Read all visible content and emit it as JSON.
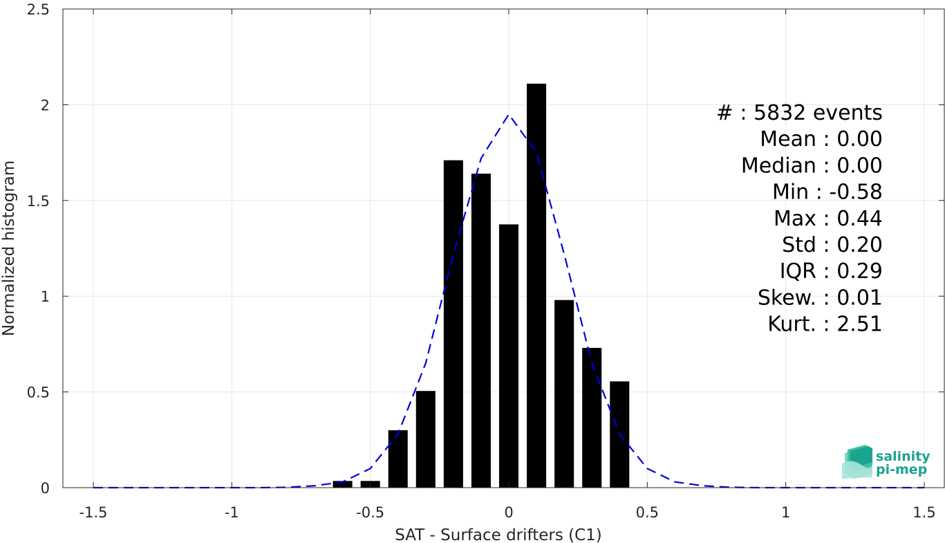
{
  "chart_data": {
    "type": "bar",
    "xlabel": "SAT - Surface drifters (C1)",
    "ylabel": "Normalized histogram",
    "xlim": [
      -1.5,
      1.5
    ],
    "ylim": [
      0,
      2.5
    ],
    "xticks": [
      "-1.5",
      "-1",
      "-0.5",
      "0",
      "0.5",
      "1",
      "1.5"
    ],
    "yticks": [
      "0",
      "0.5",
      "1",
      "1.5",
      "2",
      "2.5"
    ],
    "grid": true,
    "bar_color": "#000000",
    "bar_width": 0.07,
    "bars": {
      "x": [
        -0.6,
        -0.5,
        -0.4,
        -0.3,
        -0.2,
        -0.1,
        0.0,
        0.1,
        0.2,
        0.3,
        0.4
      ],
      "values": [
        0.035,
        0.035,
        0.3,
        0.505,
        1.71,
        1.64,
        1.375,
        2.11,
        0.98,
        0.73,
        0.555
      ]
    },
    "fit": {
      "style": "dashed",
      "color": "#0000e0",
      "x": [
        -1.5,
        -1.4,
        -1.3,
        -1.2,
        -1.1,
        -1.0,
        -0.9,
        -0.8,
        -0.7,
        -0.6,
        -0.5,
        -0.4,
        -0.3,
        -0.2,
        -0.1,
        0.0,
        0.1,
        0.2,
        0.3,
        0.4,
        0.5,
        0.6,
        0.7,
        0.8,
        0.9,
        1.0,
        1.1,
        1.2,
        1.3,
        1.4,
        1.5
      ],
      "y": [
        0,
        0,
        0,
        0,
        0,
        0,
        0,
        0.002,
        0.01,
        0.03,
        0.1,
        0.28,
        0.65,
        1.22,
        1.72,
        1.95,
        1.75,
        1.22,
        0.65,
        0.28,
        0.1,
        0.03,
        0.01,
        0.002,
        0,
        0,
        0,
        0,
        0,
        0,
        0
      ]
    },
    "stats": [
      {
        "label": "#  :",
        "value": "5832 events"
      },
      {
        "label": "Mean :",
        "value": "0.00"
      },
      {
        "label": "Median :",
        "value": "0.00"
      },
      {
        "label": "Min :",
        "value": "-0.58"
      },
      {
        "label": "Max :",
        "value": "0.44"
      },
      {
        "label": "Std :",
        "value": "0.20"
      },
      {
        "label": "IQR :",
        "value": "0.29"
      },
      {
        "label": "Skew. :",
        "value": "0.01"
      },
      {
        "label": "Kurt. :",
        "value": "2.51"
      }
    ]
  },
  "logo": {
    "line1": "salinity",
    "line2": "pi-mep",
    "color": "#1aa38f"
  }
}
